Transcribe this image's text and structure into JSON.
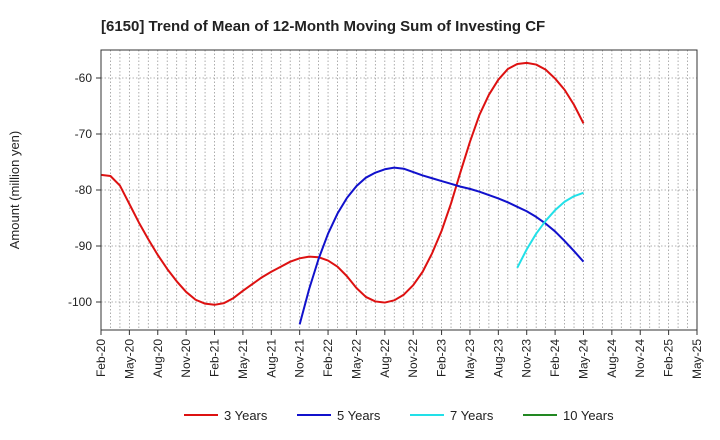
{
  "chart_data": {
    "type": "line",
    "title": "[6150]  Trend of Mean of 12-Month Moving Sum of Investing CF",
    "xlabel": "",
    "ylabel": "Amount (million yen)",
    "ylim": [
      -105,
      -55
    ],
    "y_ticks": [
      -60,
      -70,
      -80,
      -90,
      -100
    ],
    "x_ticks": [
      "Feb-20",
      "May-20",
      "Aug-20",
      "Nov-20",
      "Feb-21",
      "May-21",
      "Aug-21",
      "Nov-21",
      "Feb-22",
      "May-22",
      "Aug-22",
      "Nov-22",
      "Feb-23",
      "May-23",
      "Aug-23",
      "Nov-23",
      "Feb-24",
      "May-24",
      "Aug-24",
      "Nov-24",
      "Feb-25",
      "May-25"
    ],
    "grid": true,
    "legend_position": "bottom",
    "series": [
      {
        "name": "3 Years",
        "color": "#dd1111",
        "x": [
          "Feb-20",
          "Mar-20",
          "Apr-20",
          "May-20",
          "Jun-20",
          "Jul-20",
          "Aug-20",
          "Sep-20",
          "Oct-20",
          "Nov-20",
          "Dec-20",
          "Jan-21",
          "Feb-21",
          "Mar-21",
          "Apr-21",
          "May-21",
          "Jun-21",
          "Jul-21",
          "Aug-21",
          "Sep-21",
          "Oct-21",
          "Nov-21",
          "Dec-21",
          "Jan-22",
          "Feb-22",
          "Mar-22",
          "Apr-22",
          "May-22",
          "Jun-22",
          "Jul-22",
          "Aug-22",
          "Sep-22",
          "Oct-22",
          "Nov-22",
          "Dec-22",
          "Jan-23",
          "Feb-23",
          "Mar-23",
          "Apr-23",
          "May-23",
          "Jun-23",
          "Jul-23",
          "Aug-23",
          "Sep-23",
          "Oct-23",
          "Nov-23",
          "Dec-23",
          "Jan-24",
          "Feb-24",
          "Mar-24",
          "Apr-24",
          "May-24"
        ],
        "values": [
          -77.3,
          -77.5,
          -79.2,
          -82.5,
          -85.8,
          -88.8,
          -91.6,
          -94.1,
          -96.3,
          -98.2,
          -99.6,
          -100.3,
          -100.5,
          -100.2,
          -99.3,
          -98.0,
          -96.8,
          -95.6,
          -94.6,
          -93.7,
          -92.8,
          -92.2,
          -91.9,
          -92.0,
          -92.6,
          -93.7,
          -95.4,
          -97.5,
          -99.1,
          -99.9,
          -100.1,
          -99.7,
          -98.7,
          -97.0,
          -94.6,
          -91.3,
          -87.3,
          -82.4,
          -76.8,
          -71.4,
          -66.6,
          -63.0,
          -60.3,
          -58.4,
          -57.5,
          -57.3,
          -57.6,
          -58.5,
          -60.1,
          -62.1,
          -64.8,
          -68.1
        ]
      },
      {
        "name": "5 Years",
        "color": "#1111cc",
        "x": [
          "Nov-21",
          "Dec-21",
          "Jan-22",
          "Feb-22",
          "Mar-22",
          "Apr-22",
          "May-22",
          "Jun-22",
          "Jul-22",
          "Aug-22",
          "Sep-22",
          "Oct-22",
          "Nov-22",
          "Dec-22",
          "Jan-23",
          "Feb-23",
          "Mar-23",
          "Apr-23",
          "May-23",
          "Jun-23",
          "Jul-23",
          "Aug-23",
          "Sep-23",
          "Oct-23",
          "Nov-23",
          "Dec-23",
          "Jan-24",
          "Feb-24",
          "Mar-24",
          "Apr-24",
          "May-24"
        ],
        "values": [
          -104.0,
          -97.7,
          -92.3,
          -87.8,
          -84.2,
          -81.4,
          -79.3,
          -77.8,
          -76.9,
          -76.3,
          -76.0,
          -76.2,
          -76.8,
          -77.4,
          -77.9,
          -78.4,
          -78.9,
          -79.4,
          -79.8,
          -80.3,
          -80.9,
          -81.5,
          -82.2,
          -83.0,
          -83.8,
          -84.8,
          -86.0,
          -87.4,
          -89.1,
          -90.9,
          -92.8
        ]
      },
      {
        "name": "7 Years",
        "color": "#22e0e8",
        "x": [
          "Oct-23",
          "Nov-23",
          "Dec-23",
          "Jan-24",
          "Feb-24",
          "Mar-24",
          "Apr-24",
          "May-24"
        ],
        "values": [
          -93.9,
          -90.6,
          -87.8,
          -85.5,
          -83.6,
          -82.1,
          -81.1,
          -80.5
        ]
      },
      {
        "name": "10 Years",
        "color": "#228822",
        "x": [],
        "values": []
      }
    ]
  }
}
